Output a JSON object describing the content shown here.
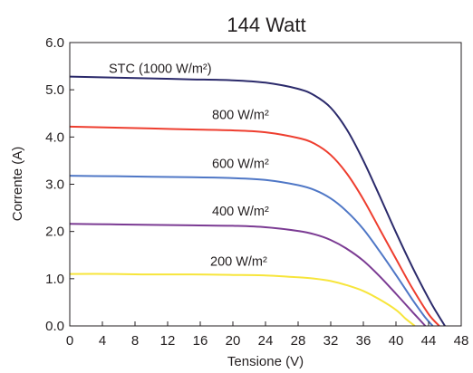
{
  "chart_data": {
    "type": "line",
    "title": "144 Watt",
    "xlabel": "Tensione (V)",
    "ylabel": "Corrente (A)",
    "xlim": [
      0,
      48
    ],
    "ylim": [
      0,
      6
    ],
    "x_ticks": [
      0,
      4,
      8,
      12,
      16,
      20,
      24,
      28,
      32,
      36,
      40,
      44,
      48
    ],
    "y_ticks": [
      "0.0",
      "1.0",
      "2.0",
      "3.0",
      "4.0",
      "5.0",
      "6.0"
    ],
    "grid": false,
    "series": [
      {
        "name": "STC (1000 W/m²)",
        "color": "#2b2a6b",
        "points": [
          [
            0,
            5.28
          ],
          [
            5,
            5.26
          ],
          [
            10,
            5.24
          ],
          [
            15,
            5.22
          ],
          [
            20,
            5.2
          ],
          [
            24,
            5.15
          ],
          [
            28,
            5.02
          ],
          [
            30,
            4.88
          ],
          [
            32,
            4.62
          ],
          [
            34,
            4.15
          ],
          [
            36,
            3.5
          ],
          [
            38,
            2.75
          ],
          [
            40,
            1.98
          ],
          [
            42,
            1.25
          ],
          [
            44,
            0.58
          ],
          [
            45,
            0.28
          ],
          [
            46,
            0.0
          ]
        ]
      },
      {
        "name": "800 W/m²",
        "color": "#ee3e2f",
        "points": [
          [
            0,
            4.22
          ],
          [
            5,
            4.2
          ],
          [
            10,
            4.18
          ],
          [
            15,
            4.16
          ],
          [
            20,
            4.14
          ],
          [
            24,
            4.1
          ],
          [
            28,
            3.98
          ],
          [
            30,
            3.86
          ],
          [
            32,
            3.62
          ],
          [
            34,
            3.22
          ],
          [
            36,
            2.68
          ],
          [
            38,
            2.05
          ],
          [
            40,
            1.42
          ],
          [
            42,
            0.8
          ],
          [
            44,
            0.25
          ],
          [
            45.3,
            0.0
          ]
        ]
      },
      {
        "name": "600 W/m²",
        "color": "#4f77c6",
        "points": [
          [
            0,
            3.18
          ],
          [
            5,
            3.17
          ],
          [
            10,
            3.16
          ],
          [
            15,
            3.15
          ],
          [
            20,
            3.13
          ],
          [
            24,
            3.09
          ],
          [
            28,
            2.98
          ],
          [
            30,
            2.88
          ],
          [
            32,
            2.7
          ],
          [
            34,
            2.42
          ],
          [
            36,
            2.05
          ],
          [
            38,
            1.58
          ],
          [
            40,
            1.08
          ],
          [
            42,
            0.56
          ],
          [
            43.5,
            0.2
          ],
          [
            44.5,
            0.0
          ]
        ]
      },
      {
        "name": "400 W/m²",
        "color": "#7b3b93",
        "points": [
          [
            0,
            2.16
          ],
          [
            5,
            2.15
          ],
          [
            10,
            2.14
          ],
          [
            15,
            2.13
          ],
          [
            20,
            2.12
          ],
          [
            24,
            2.09
          ],
          [
            28,
            2.01
          ],
          [
            30,
            1.94
          ],
          [
            32,
            1.82
          ],
          [
            34,
            1.63
          ],
          [
            36,
            1.38
          ],
          [
            38,
            1.05
          ],
          [
            40,
            0.68
          ],
          [
            42,
            0.3
          ],
          [
            43.6,
            0.0
          ]
        ]
      },
      {
        "name": "200 W/m²",
        "color": "#f7e53b",
        "points": [
          [
            0,
            1.1
          ],
          [
            5,
            1.1
          ],
          [
            10,
            1.09
          ],
          [
            15,
            1.09
          ],
          [
            20,
            1.08
          ],
          [
            24,
            1.07
          ],
          [
            28,
            1.03
          ],
          [
            30,
            1.0
          ],
          [
            32,
            0.95
          ],
          [
            34,
            0.86
          ],
          [
            36,
            0.74
          ],
          [
            38,
            0.56
          ],
          [
            40,
            0.34
          ],
          [
            41.2,
            0.15
          ],
          [
            42.3,
            0.0
          ]
        ]
      }
    ]
  }
}
